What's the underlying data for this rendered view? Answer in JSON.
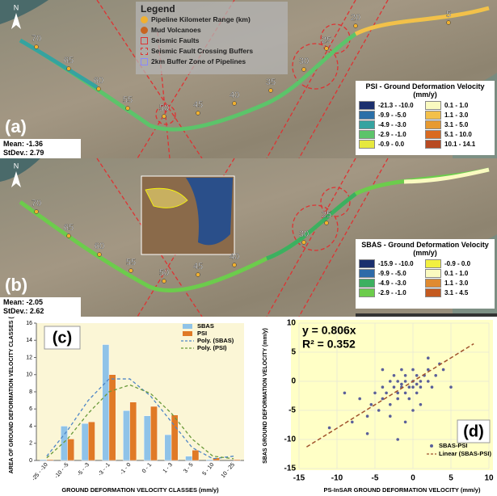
{
  "maps": [
    {
      "panel": "(a)",
      "mean": "Mean: -1.36",
      "stdev": "StDev.: 2.79",
      "north": "N",
      "km_labels": [
        "70",
        "65",
        "60",
        "55",
        "50",
        "45",
        "40",
        "35",
        "30",
        "25",
        "20",
        "5"
      ],
      "legend_title": "PSI - Ground Deformation Velocity (mm/y)",
      "classes": [
        {
          "label": "-21.3 - -10.0",
          "color": "#1b2f6e"
        },
        {
          "label": "-9.9 - -5.0",
          "color": "#2a6fa8"
        },
        {
          "label": "-4.9 - -3.0",
          "color": "#35a3a0"
        },
        {
          "label": "-2.9 - -1.0",
          "color": "#5cc46a"
        },
        {
          "label": "-0.9 - 0.0",
          "color": "#e6e83e"
        },
        {
          "label": "0.1 - 1.0",
          "color": "#fafac0"
        },
        {
          "label": "1.1 - 3.0",
          "color": "#f3c04a"
        },
        {
          "label": "3.1 - 5.0",
          "color": "#e79a30"
        },
        {
          "label": "5.1 - 10.0",
          "color": "#d96a20"
        },
        {
          "label": "10.1 - 14.1",
          "color": "#b84a22"
        }
      ]
    },
    {
      "panel": "(b)",
      "mean": "Mean: -2.05",
      "stdev": "StDev.: 2.62",
      "north": "N",
      "km_labels": [
        "70",
        "65",
        "60",
        "55",
        "50",
        "45",
        "40",
        "30",
        "25"
      ],
      "legend_title": "SBAS - Ground Deformation Velocity (mm/y)",
      "classes": [
        {
          "label": "-15.9 - -10.0",
          "color": "#1b2f6e"
        },
        {
          "label": "-9.9 - -5.0",
          "color": "#2d6aa8"
        },
        {
          "label": "-4.9 - -3.0",
          "color": "#3cb060"
        },
        {
          "label": "-2.9 - -1.0",
          "color": "#6ccc4c"
        },
        {
          "label": "-0.9 - 0.0",
          "color": "#f2f040"
        },
        {
          "label": "0.1 - 1.0",
          "color": "#fafac0"
        },
        {
          "label": "1.1 - 3.0",
          "color": "#e08a30"
        },
        {
          "label": "3.1 - 4.5",
          "color": "#c45a20"
        }
      ]
    }
  ],
  "map_legend": {
    "title": "Legend",
    "items": [
      "Pipeline Kilometer Range (km)",
      "Mud Volcanoes",
      "Seismic Faults",
      "Seismic Fault Crossing Buffers",
      "2km Buffer Zone of Pipelines"
    ]
  },
  "chart_data": [
    {
      "type": "bar",
      "panel": "(c)",
      "x_label": "GROUND DEFORMATION VELOCITY CLASSES (mm/y)",
      "y_label": "AREA OF GROUND DEFORMATION VELOCITY CLASSES (%)",
      "categories": [
        "-25 - -10",
        "-10 - -5",
        "-5 - -3",
        "-3 - -1",
        "-1 - 0",
        "0 - 1",
        "1 - 3",
        "3 - 5",
        "5 - 10",
        "10 - 25"
      ],
      "ylim": [
        0,
        16
      ],
      "yticks": [
        0,
        2,
        4,
        6,
        8,
        10,
        12,
        14,
        16
      ],
      "series": [
        {
          "name": "SBAS",
          "color": "#8fc3e8",
          "values": [
            0.1,
            4.0,
            4.3,
            13.5,
            5.8,
            5.2,
            3.0,
            0.5,
            0.1,
            0
          ]
        },
        {
          "name": "PSI",
          "color": "#e07a26",
          "values": [
            0.1,
            2.5,
            4.5,
            10.0,
            6.8,
            6.3,
            5.3,
            1.2,
            0.3,
            0.1
          ]
        },
        {
          "name": "Poly. (SBAS)",
          "color": "#4f86c6",
          "line": true,
          "values": [
            0.5,
            3.5,
            7,
            9.5,
            9.5,
            7.5,
            4.5,
            1.5,
            0.2,
            0.5
          ]
        },
        {
          "name": "Poly. (PSI)",
          "color": "#6a9a3a",
          "line": true,
          "values": [
            0.3,
            2.5,
            5.5,
            8,
            8.8,
            7.8,
            5.5,
            2.5,
            0.5,
            0.2
          ]
        }
      ]
    },
    {
      "type": "scatter",
      "panel": "(d)",
      "x_label": "PS-InSAR GROUND DEFORMATION VELOCITY (mm/y)",
      "y_label": "SBAS GROUND DEFORMATION VELOCITY (mm/y)",
      "annotations": [
        "y = 0.806x",
        "R² = 0.352"
      ],
      "xlim": [
        -15,
        10
      ],
      "xticks": [
        -15,
        -10,
        -5,
        0,
        5,
        10
      ],
      "ylim": [
        -15,
        10
      ],
      "yticks": [
        -15,
        -10,
        -5,
        0,
        5,
        10
      ],
      "series": [
        {
          "name": "SBAS-PSI",
          "color": "#5a5f9a",
          "x": [
            -11,
            -8,
            -7,
            -6,
            -5.5,
            -5,
            -4.5,
            -4,
            -4,
            -3.5,
            -3,
            -3,
            -2.5,
            -2.5,
            -2,
            -2,
            -2,
            -1.5,
            -1.5,
            -1,
            -1,
            -1,
            -0.5,
            -0.5,
            0,
            0,
            0,
            0.5,
            0.5,
            1,
            1,
            1.5,
            2,
            2,
            2.5,
            3,
            3.5,
            4,
            -6,
            -3,
            -2,
            -1,
            0,
            1,
            2,
            -9,
            -4,
            -1.5,
            0.5,
            5
          ],
          "values": [
            -8,
            -7,
            -3,
            -6,
            -4,
            -2,
            -5,
            -1,
            -3,
            -2,
            0,
            -4,
            -1,
            1,
            -2,
            0,
            -3,
            -1,
            2,
            -2,
            0,
            1,
            -1,
            -3,
            0,
            -1,
            2,
            -2,
            1,
            0,
            -1,
            1,
            0,
            2,
            -1,
            1,
            3,
            2,
            -9,
            -6,
            -10,
            -7,
            -5,
            -4,
            4,
            -2,
            2,
            -0.5,
            -0.5,
            -1
          ]
        },
        {
          "name": "Linear (SBAS-PSI)",
          "color": "#a0522d",
          "line": true,
          "x": [
            -14,
            8
          ],
          "values": [
            -11.284,
            6.448
          ]
        }
      ]
    }
  ]
}
